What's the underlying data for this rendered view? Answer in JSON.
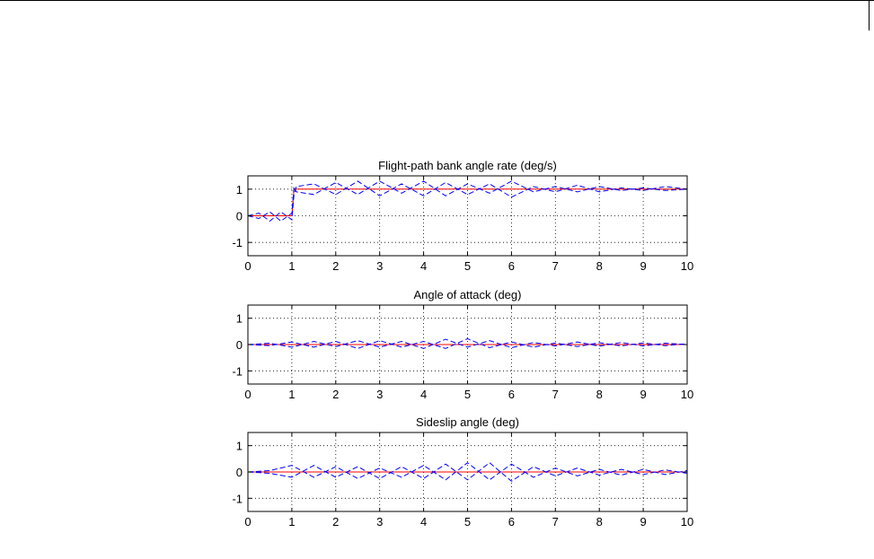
{
  "chart_data": [
    {
      "type": "line",
      "title": "Flight-path bank angle rate (deg/s)",
      "xlabel": "",
      "ylabel": "",
      "xlim": [
        0,
        10
      ],
      "ylim": [
        -1.5,
        1.5
      ],
      "xticks": [
        0,
        1,
        2,
        3,
        4,
        5,
        6,
        7,
        8,
        9,
        10
      ],
      "yticks": [
        -1,
        0,
        1
      ],
      "grid": true,
      "series": [
        {
          "style": "solid",
          "color": "#ff0000",
          "x": [
            0,
            1,
            1.05,
            1.1,
            10
          ],
          "y": [
            0,
            0,
            1,
            1,
            1
          ]
        },
        {
          "style": "dashed",
          "color": "#0000ff",
          "x": [
            0,
            0.25,
            0.5,
            0.75,
            1.0,
            1.05,
            1.1,
            1.5,
            2.0,
            2.5,
            3.0,
            3.5,
            4.0,
            4.5,
            5.0,
            5.5,
            6.0,
            6.5,
            7.0,
            7.5,
            8.0,
            8.5,
            9.0,
            9.5,
            10.0
          ],
          "y": [
            0,
            0.1,
            -0.2,
            0.15,
            -0.15,
            0.8,
            1.1,
            1.2,
            0.8,
            1.3,
            0.75,
            1.2,
            0.75,
            1.25,
            0.8,
            1.2,
            0.7,
            1.1,
            0.9,
            1.15,
            0.9,
            1.05,
            0.95,
            1.1,
            1.0
          ]
        },
        {
          "style": "dashed",
          "color": "#0000ff",
          "x": [
            0,
            0.25,
            0.5,
            0.75,
            1.0,
            1.05,
            1.1,
            1.5,
            2.0,
            2.5,
            3.0,
            3.5,
            4.0,
            4.5,
            5.0,
            5.5,
            6.0,
            6.5,
            7.0,
            7.5,
            8.0,
            8.5,
            9.0,
            9.5,
            10.0
          ],
          "y": [
            0,
            -0.1,
            0.15,
            -0.2,
            0.1,
            1.1,
            0.9,
            0.8,
            1.25,
            0.8,
            1.3,
            0.85,
            1.3,
            0.75,
            1.2,
            0.85,
            1.3,
            0.9,
            1.1,
            0.9,
            1.1,
            0.95,
            1.05,
            0.95,
            1.0
          ]
        }
      ]
    },
    {
      "type": "line",
      "title": "Angle of attack (deg)",
      "xlabel": "",
      "ylabel": "",
      "xlim": [
        0,
        10
      ],
      "ylim": [
        -1.5,
        1.5
      ],
      "xticks": [
        0,
        1,
        2,
        3,
        4,
        5,
        6,
        7,
        8,
        9,
        10
      ],
      "yticks": [
        -1,
        0,
        1
      ],
      "grid": true,
      "series": [
        {
          "style": "solid",
          "color": "#ff0000",
          "x": [
            0,
            10
          ],
          "y": [
            0,
            0
          ]
        },
        {
          "style": "dashed",
          "color": "#0000ff",
          "x": [
            0,
            0.5,
            1.0,
            1.5,
            2.0,
            2.5,
            3.0,
            3.5,
            4.0,
            4.5,
            5.0,
            5.5,
            6.0,
            6.5,
            7.0,
            7.5,
            8.0,
            8.5,
            9.0,
            9.5,
            10.0
          ],
          "y": [
            0,
            0.05,
            -0.1,
            0.12,
            -0.08,
            0.15,
            -0.1,
            0.12,
            -0.15,
            0.2,
            -0.1,
            0.15,
            -0.12,
            0.08,
            -0.05,
            0.1,
            -0.06,
            0.08,
            -0.05,
            0.05,
            0.0
          ]
        },
        {
          "style": "dashed",
          "color": "#0000ff",
          "x": [
            0,
            0.5,
            1.0,
            1.5,
            2.0,
            2.5,
            3.0,
            3.5,
            4.0,
            4.5,
            5.0,
            5.5,
            6.0,
            6.5,
            7.0,
            7.5,
            8.0,
            8.5,
            9.0,
            9.5,
            10.0
          ],
          "y": [
            0,
            -0.04,
            0.1,
            -0.1,
            0.12,
            -0.15,
            0.15,
            -0.1,
            0.12,
            -0.15,
            0.22,
            -0.12,
            0.1,
            -0.1,
            0.06,
            -0.08,
            0.07,
            -0.05,
            0.06,
            -0.04,
            0.03
          ]
        }
      ]
    },
    {
      "type": "line",
      "title": "Sideslip angle (deg)",
      "xlabel": "",
      "ylabel": "",
      "xlim": [
        0,
        10
      ],
      "ylim": [
        -1.5,
        1.5
      ],
      "xticks": [
        0,
        1,
        2,
        3,
        4,
        5,
        6,
        7,
        8,
        9,
        10
      ],
      "yticks": [
        -1,
        0,
        1
      ],
      "grid": true,
      "series": [
        {
          "style": "solid",
          "color": "#ff0000",
          "x": [
            0,
            10
          ],
          "y": [
            0,
            0
          ]
        },
        {
          "style": "dashed",
          "color": "#0000ff",
          "x": [
            0,
            0.5,
            1.0,
            1.5,
            2.0,
            2.5,
            3.0,
            3.5,
            4.0,
            4.5,
            5.0,
            5.5,
            6.0,
            6.5,
            7.0,
            7.5,
            8.0,
            8.5,
            9.0,
            9.5,
            10.0
          ],
          "y": [
            0,
            0.05,
            0.25,
            -0.2,
            0.2,
            -0.25,
            0.15,
            -0.2,
            0.25,
            -0.3,
            0.35,
            -0.3,
            0.3,
            -0.2,
            0.15,
            -0.15,
            0.1,
            -0.12,
            0.1,
            -0.1,
            0.05
          ]
        },
        {
          "style": "dashed",
          "color": "#0000ff",
          "x": [
            0,
            0.5,
            1.0,
            1.5,
            2.0,
            2.5,
            3.0,
            3.5,
            4.0,
            4.5,
            5.0,
            5.5,
            6.0,
            6.5,
            7.0,
            7.5,
            8.0,
            8.5,
            9.0,
            9.5,
            10.0
          ],
          "y": [
            0,
            -0.05,
            -0.2,
            0.25,
            -0.2,
            0.2,
            -0.25,
            0.2,
            -0.25,
            0.3,
            -0.3,
            0.35,
            -0.35,
            0.2,
            -0.15,
            0.15,
            -0.12,
            0.1,
            -0.1,
            0.08,
            -0.05
          ]
        }
      ]
    }
  ]
}
